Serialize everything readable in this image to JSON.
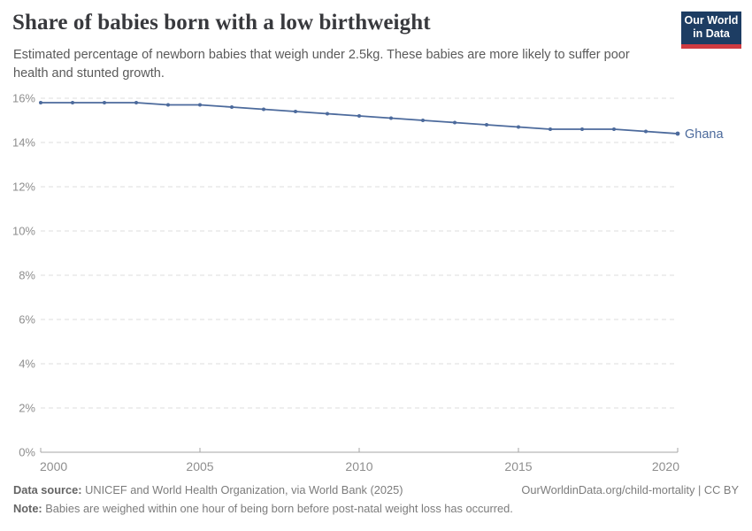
{
  "header": {
    "title": "Share of babies born with a low birthweight",
    "subtitle": "Estimated percentage of newborn babies that weigh under 2.5kg. These babies are more likely to suffer poor health and stunted growth.",
    "logo": {
      "line1": "Our World",
      "line2": "in Data",
      "bg_color": "#1d3d63",
      "bar_color": "#cf3b41"
    }
  },
  "chart_data": {
    "type": "line",
    "title": "Share of babies born with a low birthweight",
    "xlabel": "",
    "ylabel": "",
    "x": [
      2000,
      2001,
      2002,
      2003,
      2004,
      2005,
      2006,
      2007,
      2008,
      2009,
      2010,
      2011,
      2012,
      2013,
      2014,
      2015,
      2016,
      2017,
      2018,
      2019,
      2020
    ],
    "series": [
      {
        "name": "Ghana",
        "values": [
          15.8,
          15.8,
          15.8,
          15.8,
          15.7,
          15.7,
          15.6,
          15.5,
          15.4,
          15.3,
          15.2,
          15.1,
          15.0,
          14.9,
          14.8,
          14.7,
          14.6,
          14.6,
          14.6,
          14.5,
          14.4
        ]
      }
    ],
    "xlim": [
      2000,
      2020
    ],
    "ylim": [
      0,
      16
    ],
    "yticks": [
      0,
      2,
      4,
      6,
      8,
      10,
      12,
      14,
      16
    ],
    "ytick_suffix": "%",
    "xticks": [
      2000,
      2005,
      2010,
      2015,
      2020
    ],
    "grid": "horizontal-dashed",
    "legend_position": "end-of-line-label",
    "colors": {
      "line": "#4c6a9c",
      "entity_label": "#4c6a9c",
      "grid": "#dddddd",
      "axis": "#a6a6a6",
      "tick_labels": "#8e8e8e"
    }
  },
  "footer": {
    "source_label": "Data source:",
    "source_text": " UNICEF and World Health Organization, via World Bank (2025)",
    "credit": "OurWorldinData.org/child-mortality | CC BY",
    "note_label": "Note:",
    "note_text": " Babies are weighed within one hour of being born before post-natal weight loss has occurred."
  }
}
